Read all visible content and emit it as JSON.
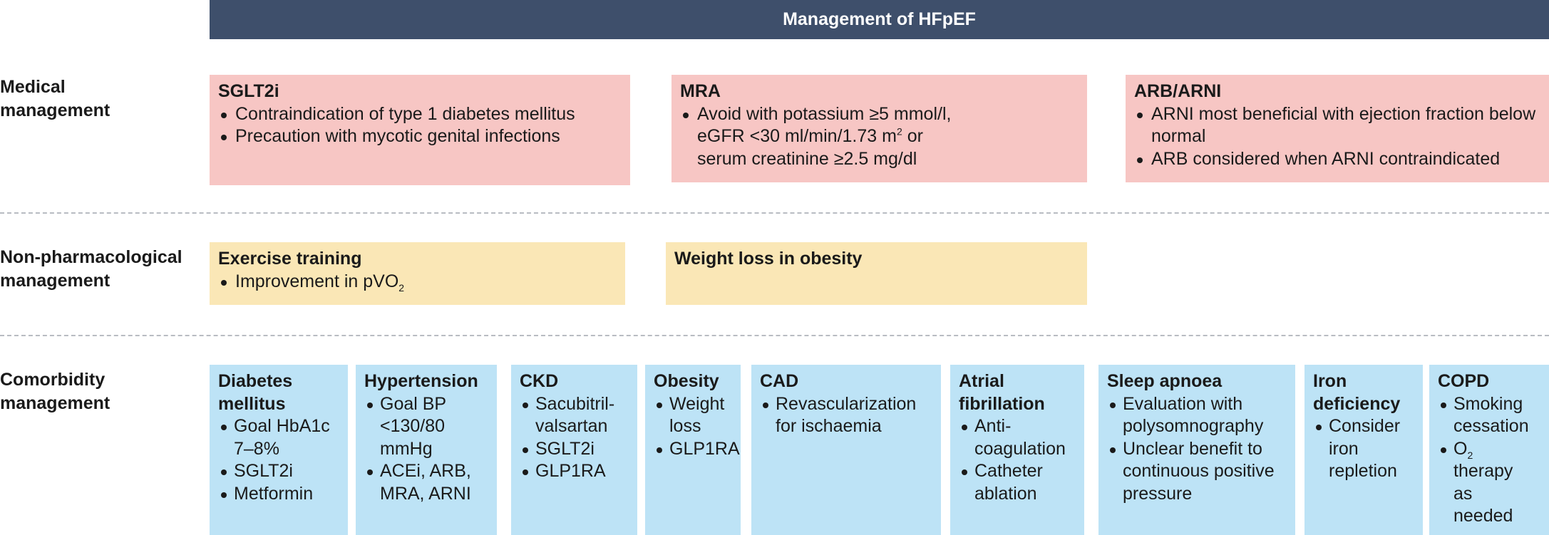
{
  "banner": {
    "title": "Management of HFpEF"
  },
  "rows": {
    "medical": {
      "label_line1": "Medical",
      "label_line2": "management"
    },
    "nonpharm": {
      "label_line1": "Non-pharmacological",
      "label_line2": "management"
    },
    "comorbidity": {
      "label_line1": "Comorbidity",
      "label_line2": "management"
    }
  },
  "medical": {
    "sglt2i": {
      "title": "SGLT2i",
      "items": [
        "Contraindication of type 1 diabetes mellitus",
        "Precaution with mycotic genital infections"
      ]
    },
    "mra": {
      "title": "MRA",
      "line1": "Avoid with potassium ≥5 mmol/l,",
      "line2_pre": "eGFR <30 ml/min/1.73 m",
      "line2_sup": "2",
      "line2_post": " or",
      "line3": "serum creatinine ≥2.5 mg/dl"
    },
    "arb_arni": {
      "title": "ARB/ARNI",
      "items": [
        "ARNI most beneficial with ejection fraction below normal",
        "ARB considered when ARNI contraindicated"
      ]
    }
  },
  "nonpharm": {
    "exercise": {
      "title": "Exercise training",
      "item_pre": "Improvement in pVO",
      "item_sub": "2"
    },
    "weight_loss": {
      "title": "Weight loss in obesity"
    }
  },
  "comorbidity": {
    "diabetes": {
      "title_line1": "Diabetes",
      "title_line2": "mellitus",
      "items": [
        "Goal HbA1c 7–8%",
        "SGLT2i",
        "Metformin"
      ]
    },
    "hypertension": {
      "title": "Hypertension",
      "items": [
        "Goal BP <130/80 mmHg",
        "ACEi, ARB, MRA, ARNI"
      ]
    },
    "ckd": {
      "title": "CKD",
      "items": [
        "Sacubitril-valsartan",
        "SGLT2i",
        "GLP1RA"
      ]
    },
    "obesity": {
      "title": "Obesity",
      "items": [
        "Weight loss",
        "GLP1RA"
      ]
    },
    "cad": {
      "title": "CAD",
      "items": [
        "Revascularization for ischaemia"
      ]
    },
    "af": {
      "title_line1": "Atrial",
      "title_line2": "fibrillation",
      "items": [
        "Anti-coagulation",
        "Catheter ablation"
      ]
    },
    "sleep": {
      "title": "Sleep apnoea",
      "items": [
        "Evaluation with polysomnography",
        "Unclear benefit to continuous positive pressure"
      ]
    },
    "iron": {
      "title_line1": "Iron",
      "title_line2": "deficiency",
      "items": [
        "Consider iron repletion"
      ]
    },
    "copd": {
      "title": "COPD",
      "item1": "Smoking cessation",
      "item2_pre": "O",
      "item2_sub": "2",
      "item2_post": " therapy as needed"
    }
  }
}
